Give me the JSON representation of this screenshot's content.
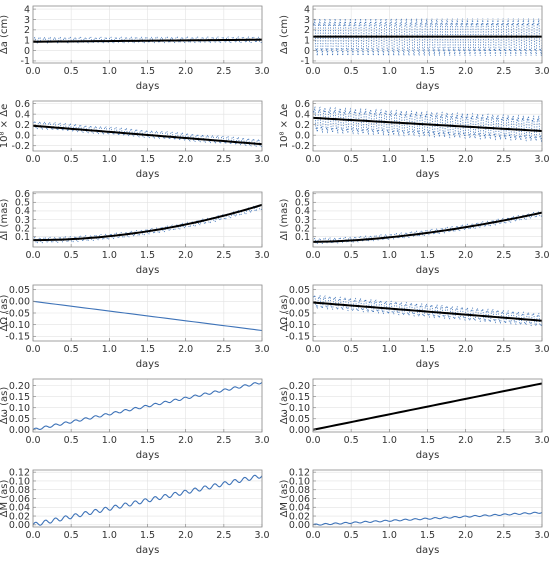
{
  "chart_data": [
    {
      "type": "line",
      "ylabel": "Δa (cm)",
      "xlabel": "days",
      "xlim": [
        0,
        3.0
      ],
      "ylim": [
        -1.2,
        4.3
      ],
      "xticks": [
        "0.0",
        "0.5",
        "1.0",
        "1.5",
        "2.0",
        "2.5",
        "3.0"
      ],
      "yticks": [
        {
          "v": -1,
          "t": "-1"
        },
        {
          "v": 0,
          "t": "0"
        },
        {
          "v": 1,
          "t": "1"
        },
        {
          "v": 2,
          "t": "2"
        },
        {
          "v": 3,
          "t": "3"
        },
        {
          "v": 4,
          "t": "4"
        }
      ],
      "series": [
        {
          "style": "oscillating",
          "x_range": [
            0,
            3.0
          ],
          "center": [
            1.0,
            1.05
          ],
          "amplitude": 0.35,
          "cycles": 45
        },
        {
          "style": "trend",
          "x": [
            0,
            3.0
          ],
          "y": [
            0.85,
            1.05
          ]
        }
      ]
    },
    {
      "type": "line",
      "ylabel": "Δa (cm)",
      "xlabel": "days",
      "xlim": [
        0,
        3.0
      ],
      "ylim": [
        -1.2,
        4.3
      ],
      "xticks": [
        "0.0",
        "0.5",
        "1.0",
        "1.5",
        "2.0",
        "2.5",
        "3.0"
      ],
      "yticks": [
        {
          "v": -1,
          "t": "-1"
        },
        {
          "v": 0,
          "t": "0"
        },
        {
          "v": 1,
          "t": "1"
        },
        {
          "v": 2,
          "t": "2"
        },
        {
          "v": 3,
          "t": "3"
        },
        {
          "v": 4,
          "t": "4"
        }
      ],
      "series": [
        {
          "style": "oscillating",
          "x_range": [
            0,
            3.0
          ],
          "center": [
            1.3,
            1.3
          ],
          "amplitude": 2.3,
          "cycles": 45
        },
        {
          "style": "trend",
          "x": [
            0,
            3.0
          ],
          "y": [
            1.35,
            1.35
          ]
        }
      ]
    },
    {
      "type": "line",
      "ylabel": "10⁸ × Δe",
      "xlabel": "days",
      "xlim": [
        0,
        3.0
      ],
      "ylim": [
        -0.3,
        0.65
      ],
      "xticks": [
        "0.0",
        "0.5",
        "1.0",
        "1.5",
        "2.0",
        "2.5",
        "3.0"
      ],
      "yticks": [
        {
          "v": -0.2,
          "t": "-0.2"
        },
        {
          "v": 0,
          "t": "0.0"
        },
        {
          "v": 0.2,
          "t": "0.2"
        },
        {
          "v": 0.4,
          "t": "0.4"
        },
        {
          "v": 0.6,
          "t": "0.6"
        }
      ],
      "series": [
        {
          "style": "oscillating",
          "x_range": [
            0,
            3.0
          ],
          "center": [
            0.2,
            -0.15
          ],
          "amplitude": 0.09,
          "cycles": 45
        },
        {
          "style": "trend",
          "x": [
            0,
            3.0
          ],
          "y": [
            0.18,
            -0.17
          ]
        }
      ]
    },
    {
      "type": "line",
      "ylabel": "10⁸ × Δe",
      "xlabel": "days",
      "xlim": [
        0,
        3.0
      ],
      "ylim": [
        -0.3,
        0.65
      ],
      "xticks": [
        "0.0",
        "0.5",
        "1.0",
        "1.5",
        "2.0",
        "2.5",
        "3.0"
      ],
      "yticks": [
        {
          "v": -0.2,
          "t": "-0.2"
        },
        {
          "v": 0,
          "t": "0.0"
        },
        {
          "v": 0.2,
          "t": "0.2"
        },
        {
          "v": 0.4,
          "t": "0.4"
        },
        {
          "v": 0.6,
          "t": "0.6"
        }
      ],
      "series": [
        {
          "style": "oscillating",
          "x_range": [
            0,
            3.0
          ],
          "center": [
            0.3,
            0.12
          ],
          "amplitude": 0.3,
          "cycles": 45
        },
        {
          "style": "trend",
          "x": [
            0,
            3.0
          ],
          "y": [
            0.33,
            0.08
          ]
        }
      ]
    },
    {
      "type": "line",
      "ylabel": "ΔI (mas)",
      "xlabel": "days",
      "xlim": [
        0,
        3.0
      ],
      "ylim": [
        -0.02,
        0.62
      ],
      "xticks": [
        "0.0",
        "0.5",
        "1.0",
        "1.5",
        "2.0",
        "2.5",
        "3.0"
      ],
      "yticks": [
        {
          "v": 0.1,
          "t": "0.1"
        },
        {
          "v": 0.2,
          "t": "0.2"
        },
        {
          "v": 0.3,
          "t": "0.3"
        },
        {
          "v": 0.4,
          "t": "0.4"
        },
        {
          "v": 0.5,
          "t": "0.5"
        },
        {
          "v": 0.6,
          "t": "0.6"
        }
      ],
      "series": [
        {
          "style": "oscillating",
          "x_range": [
            0,
            3.0
          ],
          "center": [
            0.06,
            0.45
          ],
          "curve": 2,
          "amplitude": 0.04,
          "cycles": 45
        },
        {
          "style": "trend",
          "x": [
            0,
            3.0
          ],
          "y": [
            0.06,
            0.47
          ],
          "curve": 2
        }
      ]
    },
    {
      "type": "line",
      "ylabel": "ΔI (mas)",
      "xlabel": "days",
      "xlim": [
        0,
        3.0
      ],
      "ylim": [
        -0.02,
        0.62
      ],
      "xticks": [
        "0.0",
        "0.5",
        "1.0",
        "1.5",
        "2.0",
        "2.5",
        "3.0"
      ],
      "yticks": [
        {
          "v": 0.1,
          "t": "0.1"
        },
        {
          "v": 0.2,
          "t": "0.2"
        },
        {
          "v": 0.3,
          "t": "0.3"
        },
        {
          "v": 0.4,
          "t": "0.4"
        },
        {
          "v": 0.5,
          "t": "0.5"
        },
        {
          "v": 0.6,
          "t": "0.6"
        }
      ],
      "series": [
        {
          "style": "oscillating",
          "x_range": [
            0,
            3.0
          ],
          "center": [
            0.05,
            0.37
          ],
          "curve": 1.7,
          "amplitude": 0.04,
          "cycles": 45
        },
        {
          "style": "trend",
          "x": [
            0,
            3.0
          ],
          "y": [
            0.04,
            0.38
          ],
          "curve": 1.7
        }
      ]
    },
    {
      "type": "line",
      "ylabel": "ΔΩ (as)",
      "xlabel": "days",
      "xlim": [
        0,
        3.0
      ],
      "ylim": [
        -0.17,
        0.07
      ],
      "xticks": [
        "0.0",
        "0.5",
        "1.0",
        "1.5",
        "2.0",
        "2.5",
        "3.0"
      ],
      "yticks": [
        {
          "v": -0.15,
          "t": "-0.15"
        },
        {
          "v": -0.1,
          "t": "-0.10"
        },
        {
          "v": -0.05,
          "t": "-0.05"
        },
        {
          "v": 0,
          "t": "0.00"
        },
        {
          "v": 0.05,
          "t": "0.05"
        }
      ],
      "series": [
        {
          "style": "solid",
          "x_range": [
            0,
            3.0
          ],
          "center": [
            0.0,
            -0.125
          ],
          "amplitude": 0.0,
          "cycles": 0
        }
      ]
    },
    {
      "type": "line",
      "ylabel": "ΔΩ (as)",
      "xlabel": "days",
      "xlim": [
        0,
        3.0
      ],
      "ylim": [
        -0.17,
        0.07
      ],
      "xticks": [
        "0.0",
        "0.5",
        "1.0",
        "1.5",
        "2.0",
        "2.5",
        "3.0"
      ],
      "yticks": [
        {
          "v": -0.15,
          "t": "-0.15"
        },
        {
          "v": -0.1,
          "t": "-0.10"
        },
        {
          "v": -0.05,
          "t": "-0.05"
        },
        {
          "v": 0,
          "t": "0.00"
        },
        {
          "v": 0.05,
          "t": "0.05"
        }
      ],
      "series": [
        {
          "style": "oscillating",
          "x_range": [
            0,
            3.0
          ],
          "center": [
            0.0,
            -0.08
          ],
          "amplitude": 0.035,
          "cycles": 45
        },
        {
          "style": "trend",
          "x": [
            0,
            3.0
          ],
          "y": [
            -0.005,
            -0.083
          ]
        }
      ]
    },
    {
      "type": "line",
      "ylabel": "Δω (as)",
      "xlabel": "days",
      "xlim": [
        0,
        3.0
      ],
      "ylim": [
        -0.01,
        0.23
      ],
      "xticks": [
        "0.0",
        "0.5",
        "1.0",
        "1.5",
        "2.0",
        "2.5",
        "3.0"
      ],
      "yticks": [
        {
          "v": 0,
          "t": "0.00"
        },
        {
          "v": 0.05,
          "t": "0.05"
        },
        {
          "v": 0.1,
          "t": "0.10"
        },
        {
          "v": 0.15,
          "t": "0.15"
        },
        {
          "v": 0.2,
          "t": "0.20"
        }
      ],
      "series": [
        {
          "style": "wavy",
          "x_range": [
            0,
            3.0
          ],
          "center": [
            0.0,
            0.215
          ],
          "amplitude": 0.005,
          "cycles": 23
        }
      ]
    },
    {
      "type": "line",
      "ylabel": "Δω (as)",
      "xlabel": "days",
      "xlim": [
        0,
        3.0
      ],
      "ylim": [
        -0.01,
        0.23
      ],
      "xticks": [
        "0.0",
        "0.5",
        "1.0",
        "1.5",
        "2.0",
        "2.5",
        "3.0"
      ],
      "yticks": [
        {
          "v": 0,
          "t": "0.00"
        },
        {
          "v": 0.05,
          "t": "0.05"
        },
        {
          "v": 0.1,
          "t": "0.10"
        },
        {
          "v": 0.15,
          "t": "0.15"
        },
        {
          "v": 0.2,
          "t": "0.20"
        }
      ],
      "series": [
        {
          "style": "solid",
          "x_range": [
            0,
            3.0
          ],
          "center": [
            0.0,
            0.21
          ],
          "amplitude": 0.0,
          "cycles": 0
        },
        {
          "style": "trend",
          "x": [
            0,
            3.0
          ],
          "y": [
            0.0,
            0.21
          ]
        }
      ]
    },
    {
      "type": "line",
      "ylabel": "ΔM (as)",
      "xlabel": "days",
      "xlim": [
        0,
        3.0
      ],
      "ylim": [
        -0.005,
        0.125
      ],
      "xticks": [
        "0.0",
        "0.5",
        "1.0",
        "1.5",
        "2.0",
        "2.5",
        "3.0"
      ],
      "yticks": [
        {
          "v": 0,
          "t": "0.00"
        },
        {
          "v": 0.02,
          "t": "0.02"
        },
        {
          "v": 0.04,
          "t": "0.04"
        },
        {
          "v": 0.06,
          "t": "0.06"
        },
        {
          "v": 0.08,
          "t": "0.08"
        },
        {
          "v": 0.1,
          "t": "0.10"
        },
        {
          "v": 0.12,
          "t": "0.12"
        }
      ],
      "series": [
        {
          "style": "wavy",
          "x_range": [
            0,
            3.0
          ],
          "center": [
            0.0,
            0.112
          ],
          "amplitude": 0.0045,
          "cycles": 23
        }
      ]
    },
    {
      "type": "line",
      "ylabel": "ΔM (as)",
      "xlabel": "days",
      "xlim": [
        0,
        3.0
      ],
      "ylim": [
        -0.005,
        0.125
      ],
      "xticks": [
        "0.0",
        "0.5",
        "1.0",
        "1.5",
        "2.0",
        "2.5",
        "3.0"
      ],
      "yticks": [
        {
          "v": 0,
          "t": "0.00"
        },
        {
          "v": 0.02,
          "t": "0.02"
        },
        {
          "v": 0.04,
          "t": "0.04"
        },
        {
          "v": 0.06,
          "t": "0.06"
        },
        {
          "v": 0.08,
          "t": "0.08"
        },
        {
          "v": 0.1,
          "t": "0.10"
        },
        {
          "v": 0.12,
          "t": "0.12"
        }
      ],
      "series": [
        {
          "style": "wavy",
          "x_range": [
            0,
            3.0
          ],
          "center": [
            0.0,
            0.028
          ],
          "amplitude": 0.0015,
          "cycles": 23
        }
      ]
    }
  ]
}
